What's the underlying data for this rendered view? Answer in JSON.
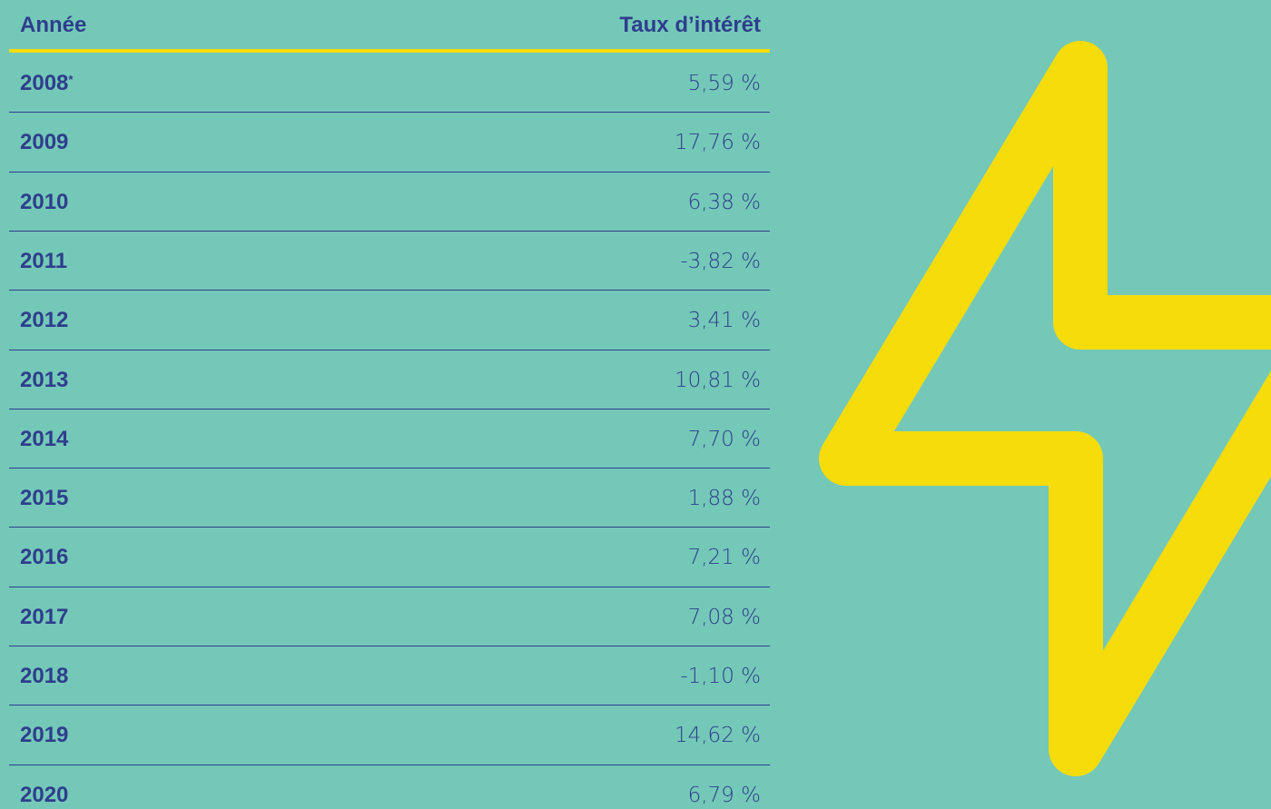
{
  "table": {
    "header": [
      "Année",
      "Taux d’intérêt"
    ],
    "rows": [
      {
        "year": "2008",
        "marker": "*",
        "rate": "5,59 %"
      },
      {
        "year": "2009",
        "rate": "17,76 %"
      },
      {
        "year": "2010",
        "rate": "6,38 %"
      },
      {
        "year": "2011",
        "rate": "-3,82 %"
      },
      {
        "year": "2012",
        "rate": "3,41 %"
      },
      {
        "year": "2013",
        "rate": "10,81 %"
      },
      {
        "year": "2014",
        "rate": "7,70 %"
      },
      {
        "year": "2015",
        "rate": "1,88 %"
      },
      {
        "year": "2016",
        "rate": "7,21 %"
      },
      {
        "year": "2017",
        "rate": "7,08 %"
      },
      {
        "year": "2018",
        "rate": "-1,10 %"
      },
      {
        "year": "2019",
        "rate": "14,62 %"
      },
      {
        "year": "2020",
        "rate": "6,79 %"
      }
    ]
  }
}
